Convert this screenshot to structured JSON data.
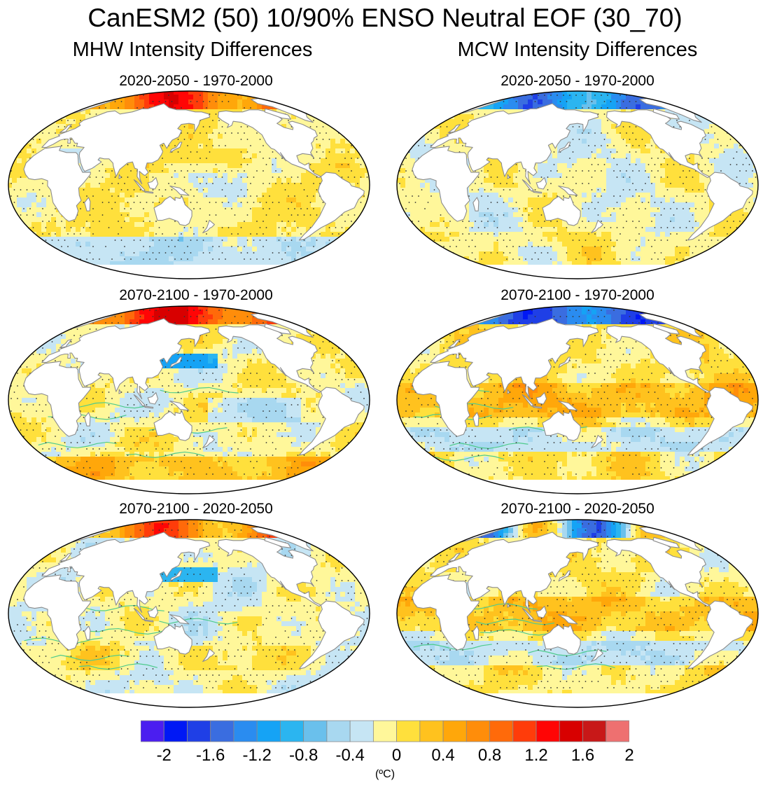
{
  "title": "CanESM2 (50) 10/90% ENSO Neutral EOF (30_70)",
  "columns": [
    {
      "title": "MHW Intensity Differences"
    },
    {
      "title": "MCW Intensity Differences"
    }
  ],
  "panels": [
    {
      "title": "2020-2050 - 1970-2000",
      "variable": "MHW",
      "pattern": "mhw_near"
    },
    {
      "title": "2020-2050 - 1970-2000",
      "variable": "MCW",
      "pattern": "mcw_near"
    },
    {
      "title": "2070-2100 - 1970-2000",
      "variable": "MHW",
      "pattern": "mhw_far"
    },
    {
      "title": "2070-2100 - 1970-2000",
      "variable": "MCW",
      "pattern": "mcw_far"
    },
    {
      "title": "2070-2100 - 2020-2050",
      "variable": "MHW",
      "pattern": "mhw_late"
    },
    {
      "title": "2070-2100 - 2020-2050",
      "variable": "MCW",
      "pattern": "mcw_late"
    }
  ],
  "colorbar": {
    "unit": "(ºC)",
    "colors": [
      "#4b1ef0",
      "#0018f5",
      "#1f3fe6",
      "#3a6de0",
      "#2a8cf0",
      "#15a3f5",
      "#2bb5f0",
      "#6ac0ec",
      "#a8d8f0",
      "#c6e5f4",
      "#fff79a",
      "#ffe03c",
      "#ffc21e",
      "#ffa70a",
      "#ff8d0a",
      "#ff6a0a",
      "#ff3c0a",
      "#ff0505",
      "#d80000",
      "#c81818",
      "#ee7070"
    ],
    "tick_labels": [
      "-2",
      "-1.6",
      "-1.2",
      "-0.8",
      "-0.4",
      "0",
      "0.4",
      "0.8",
      "1.2",
      "1.6",
      "2"
    ],
    "tick_values": [
      -2,
      -1.6,
      -1.2,
      -0.8,
      -0.4,
      0,
      0.4,
      0.8,
      1.2,
      1.6,
      2
    ]
  },
  "colors": {
    "land": "#ffffff",
    "coast": "#8c8c8c",
    "stipple": "#333333",
    "contour": "#4ecb8d"
  }
}
